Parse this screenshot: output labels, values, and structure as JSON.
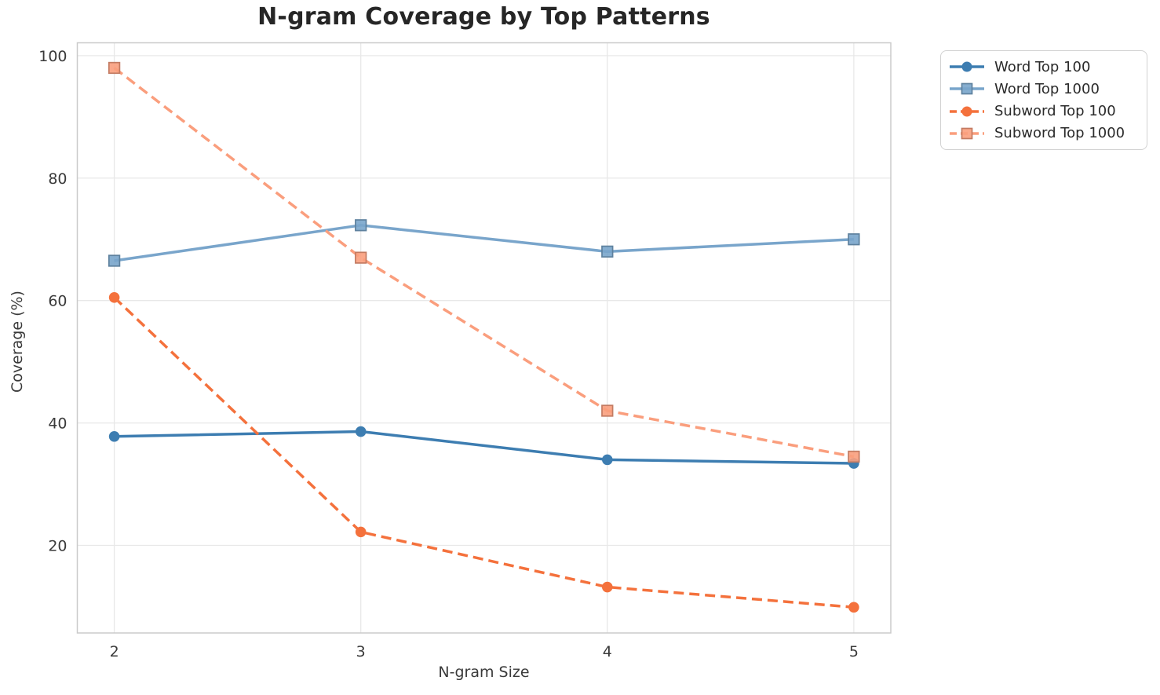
{
  "page": {
    "title": "N-gram Coverage by Top Patterns"
  },
  "chart_data": {
    "type": "line",
    "title": "N-gram Coverage by Top Patterns",
    "xlabel": "N-gram Size",
    "ylabel": "Coverage (%)",
    "x": [
      2,
      3,
      4,
      5
    ],
    "xtick_labels": [
      "2",
      "3",
      "4",
      "5"
    ],
    "yticks": [
      20,
      40,
      60,
      80,
      100
    ],
    "ytick_labels": [
      "20",
      "40",
      "60",
      "80",
      "100"
    ],
    "xlim": [
      1.85,
      5.15
    ],
    "ylim": [
      5.7,
      102.1
    ],
    "grid": true,
    "legend_position": "outside-top-right",
    "background_color": "#ffffff",
    "grid_color": "#e8e8e8",
    "spine_color": "#cacaca",
    "text_color": "#3a3a3a",
    "series": [
      {
        "name": "Word Top 100",
        "values": [
          37.8,
          38.6,
          34.0,
          33.4
        ],
        "color": "#3D7DB1",
        "line_style": "solid",
        "marker": "circle"
      },
      {
        "name": "Word Top 1000",
        "values": [
          66.5,
          72.3,
          68.0,
          70.0
        ],
        "color": "#79A5CB",
        "line_style": "solid",
        "marker": "square"
      },
      {
        "name": "Subword Top 100",
        "values": [
          60.5,
          22.2,
          13.2,
          9.9
        ],
        "color": "#F4713C",
        "line_style": "dashed",
        "marker": "circle"
      },
      {
        "name": "Subword Top 1000",
        "values": [
          98.0,
          67.0,
          42.0,
          34.5
        ],
        "color": "#FA9E7D",
        "line_style": "dashed",
        "marker": "square"
      }
    ]
  }
}
